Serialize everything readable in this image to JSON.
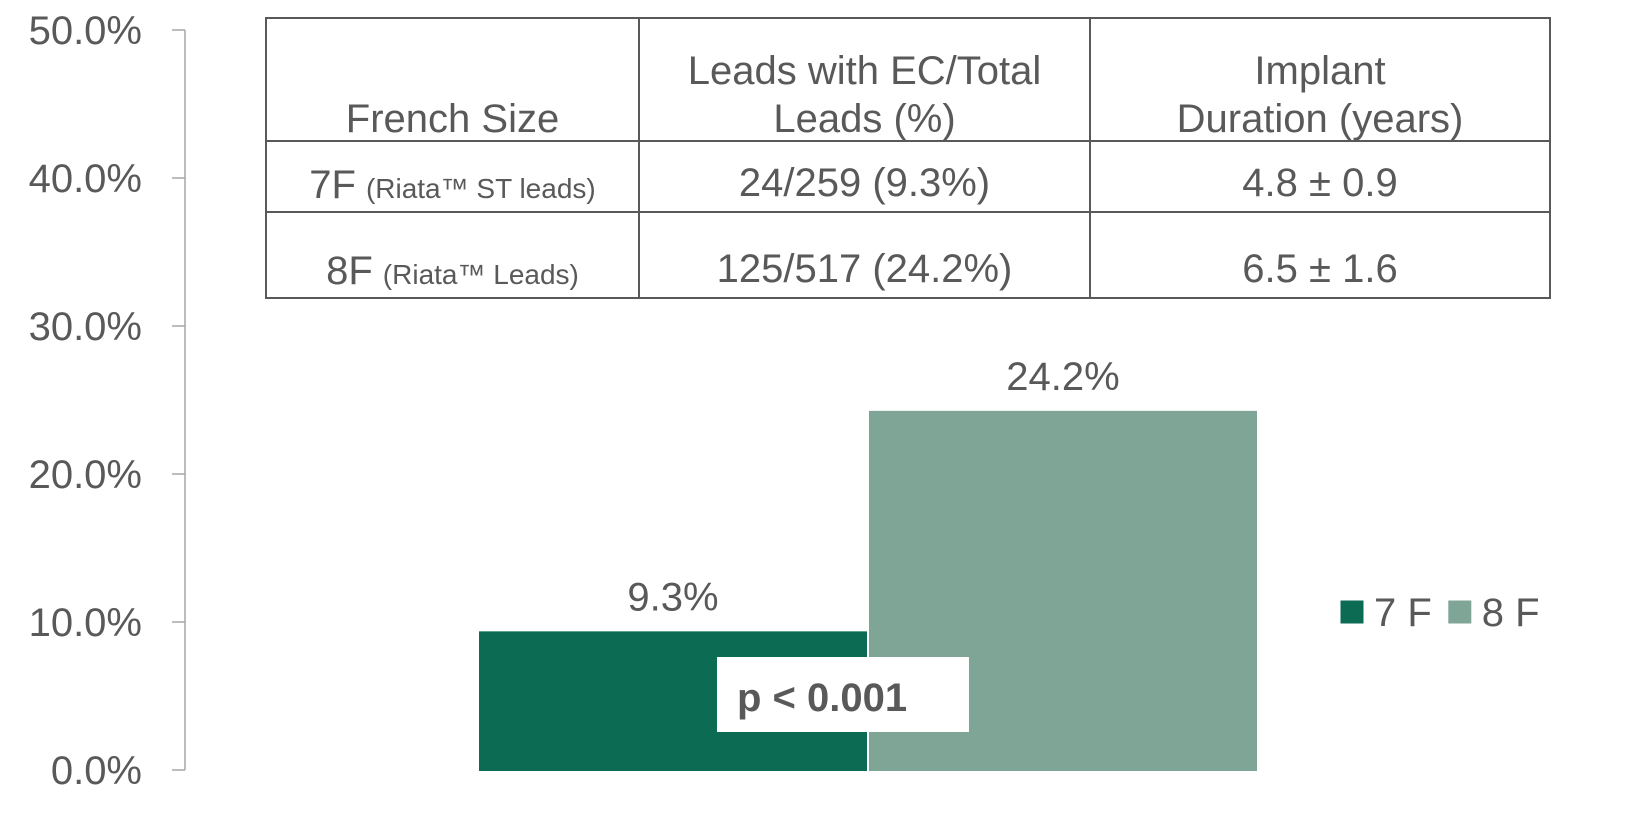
{
  "chart_data": {
    "type": "bar",
    "categories": [
      null
    ],
    "series": [
      {
        "name": "7 F",
        "color": "#0b6b53",
        "values": [
          9.3
        ],
        "value_labels": [
          "9.3%"
        ]
      },
      {
        "name": "8 F",
        "color": "#7fa597",
        "values": [
          24.2
        ],
        "value_labels": [
          "24.2%"
        ]
      }
    ],
    "ylim": [
      0,
      50
    ],
    "yticks": [
      {
        "value": 0,
        "label": "0.0%"
      },
      {
        "value": 10,
        "label": "10.0%"
      },
      {
        "value": 20,
        "label": "20.0%"
      },
      {
        "value": 30,
        "label": "30.0%"
      },
      {
        "value": 40,
        "label": "40.0%"
      },
      {
        "value": 50,
        "label": "50.0%"
      }
    ],
    "grid": false,
    "legend": "right",
    "annotation": "p < 0.001"
  },
  "table": {
    "header": [
      [
        "French Size"
      ],
      [
        "Leads with EC/Total",
        "Leads (%)"
      ],
      [
        "Implant",
        "Duration (years)"
      ]
    ],
    "rows": [
      [
        {
          "main": "7F",
          "note": "(Riata™ ST leads)"
        },
        "24/259 (9.3%)",
        "4.8 ± 0.9"
      ],
      [
        {
          "main": "8F",
          "note": "(Riata™ Leads)"
        },
        "125/517 (24.2%)",
        "6.5 ± 1.6"
      ]
    ]
  }
}
